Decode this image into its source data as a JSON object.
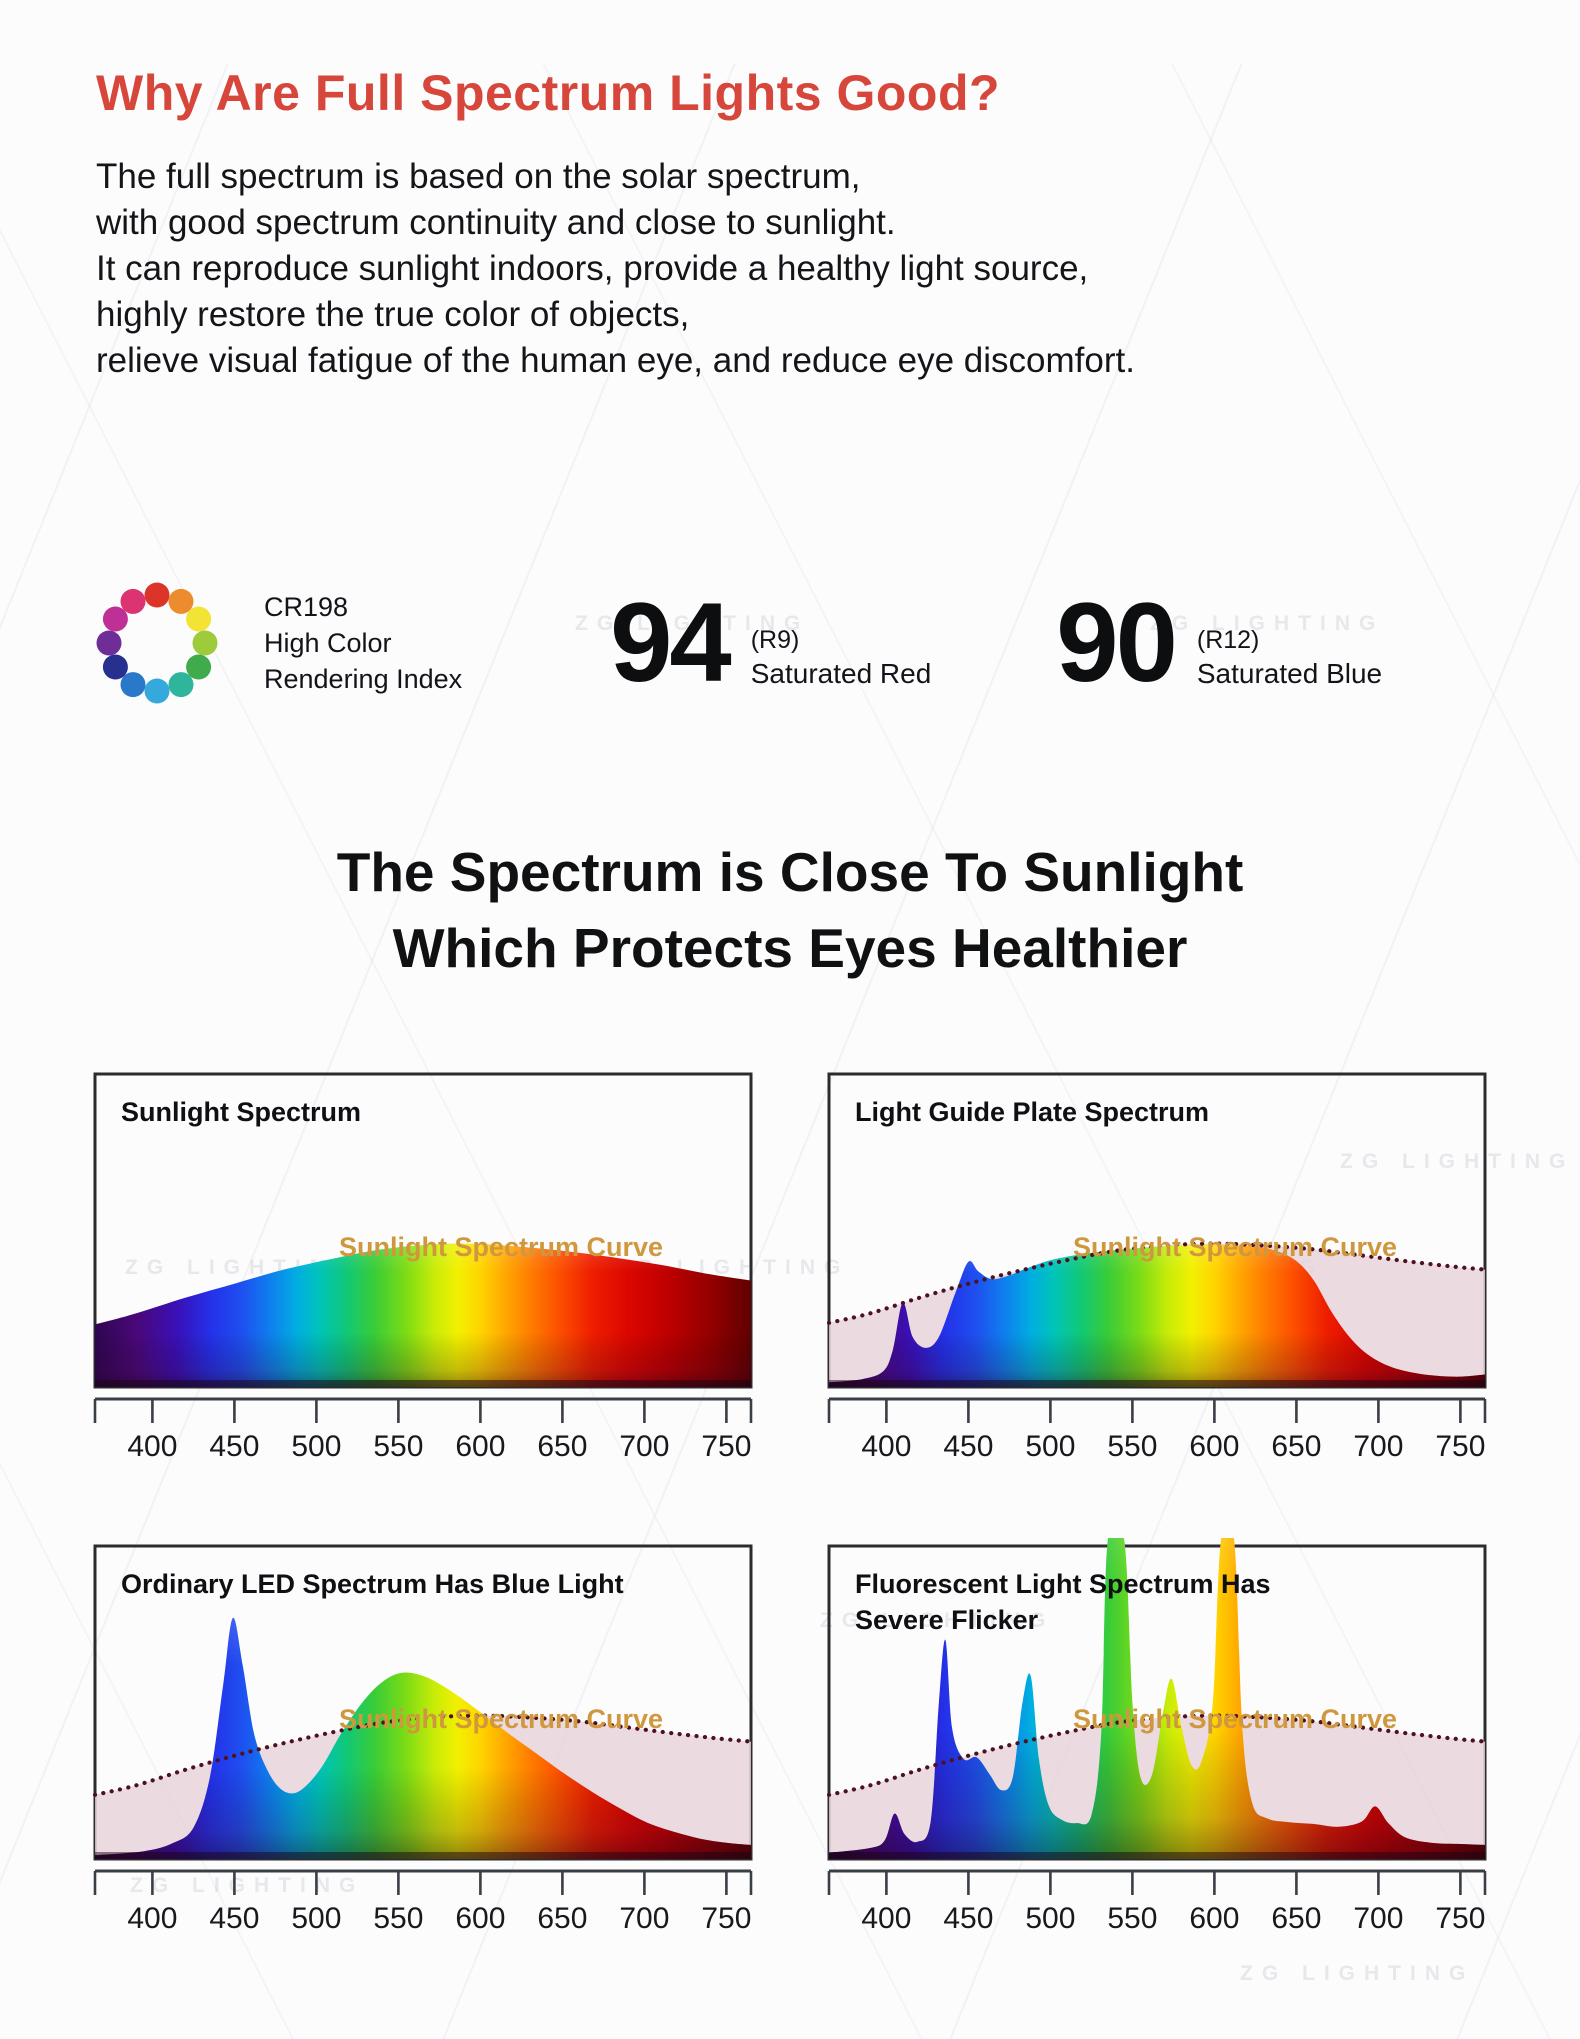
{
  "page": {
    "heading": "Why Are Full Spectrum Lights Good?",
    "paragraph_lines": [
      "The full spectrum is based on the solar spectrum,",
      "with good spectrum continuity and close to sunlight.",
      "It can reproduce sunlight indoors, provide a healthy light source,",
      "highly restore the true color of objects,",
      "relieve visual fatigue of the human eye, and reduce eye discomfort."
    ],
    "subheading_lines": [
      "The Spectrum is Close To Sunlight",
      "Which Protects Eyes Healthier"
    ]
  },
  "cri": {
    "label_line1": "CR198",
    "label_line2": "High Color",
    "label_line3": "Rendering Index",
    "wheel_colors": [
      "#DC3428",
      "#EC8C2F",
      "#F2E335",
      "#9DCB3B",
      "#3FAB4A",
      "#2FB59B",
      "#35A8DC",
      "#2979C8",
      "#27308F",
      "#6E2D97",
      "#BF3096",
      "#DC3372"
    ]
  },
  "stats": [
    {
      "value": "94",
      "index": "(R9)",
      "label": "Saturated Red"
    },
    {
      "value": "90",
      "index": "(R12)",
      "label": "Saturated Blue"
    }
  ],
  "watermark": {
    "text": "ZG LIGHTING"
  },
  "colors": {
    "heading_red": "#D6463B",
    "accent_gold": "#CF983E",
    "dotted_curve": "#4E1120",
    "pink_fill": "#E8D2DB",
    "axis": "#3A3F45",
    "spectrum_gradient": [
      [
        365,
        "#2F0650"
      ],
      [
        390,
        "#4A0878"
      ],
      [
        415,
        "#3A10B8"
      ],
      [
        435,
        "#2430E8"
      ],
      [
        455,
        "#1E50F0"
      ],
      [
        472,
        "#0E80EE"
      ],
      [
        488,
        "#00AEE0"
      ],
      [
        502,
        "#00C4B8"
      ],
      [
        518,
        "#10C878"
      ],
      [
        535,
        "#38CC38"
      ],
      [
        555,
        "#7EDC14"
      ],
      [
        572,
        "#C8EC08"
      ],
      [
        586,
        "#F2F000"
      ],
      [
        600,
        "#FFD400"
      ],
      [
        615,
        "#FFA800"
      ],
      [
        632,
        "#FF7800"
      ],
      [
        650,
        "#FB4A00"
      ],
      [
        668,
        "#EE1E00"
      ],
      [
        690,
        "#DC0600"
      ],
      [
        715,
        "#BC0000"
      ],
      [
        740,
        "#940000"
      ],
      [
        765,
        "#600000"
      ]
    ]
  },
  "chart_data": [
    {
      "type": "area",
      "title": "Sunlight Spectrum",
      "title_lines": [
        "Sunlight Spectrum"
      ],
      "curve_label": "Sunlight Spectrum Curve",
      "xlim": [
        365,
        765
      ],
      "x_ticks": [
        400,
        450,
        500,
        550,
        600,
        650,
        700,
        750
      ],
      "grid": false,
      "series": [
        {
          "name": "Sunlight Spectrum Curve",
          "style": "rainbow-fill",
          "points": [
            [
              365,
              0.2
            ],
            [
              390,
              0.235
            ],
            [
              420,
              0.285
            ],
            [
              450,
              0.33
            ],
            [
              480,
              0.375
            ],
            [
              510,
              0.41
            ],
            [
              540,
              0.44
            ],
            [
              570,
              0.455
            ],
            [
              595,
              0.458
            ],
            [
              620,
              0.45
            ],
            [
              650,
              0.435
            ],
            [
              680,
              0.415
            ],
            [
              710,
              0.39
            ],
            [
              740,
              0.36
            ],
            [
              765,
              0.34
            ]
          ]
        }
      ]
    },
    {
      "type": "area",
      "title": "Light Guide Plate Spectrum",
      "title_lines": [
        "Light Guide Plate Spectrum"
      ],
      "curve_label": "Sunlight Spectrum Curve",
      "xlim": [
        365,
        765
      ],
      "x_ticks": [
        400,
        450,
        500,
        550,
        600,
        650,
        700,
        750
      ],
      "grid": false,
      "series": [
        {
          "name": "Sunlight Spectrum Curve (reference)",
          "style": "dotted-reference",
          "points": [
            [
              365,
              0.205
            ],
            [
              390,
              0.235
            ],
            [
              420,
              0.285
            ],
            [
              450,
              0.33
            ],
            [
              480,
              0.37
            ],
            [
              510,
              0.405
            ],
            [
              540,
              0.435
            ],
            [
              570,
              0.452
            ],
            [
              600,
              0.458
            ],
            [
              630,
              0.452
            ],
            [
              660,
              0.44
            ],
            [
              690,
              0.42
            ],
            [
              720,
              0.4
            ],
            [
              745,
              0.385
            ],
            [
              765,
              0.375
            ]
          ]
        },
        {
          "name": "Light guide plate spectrum",
          "style": "rainbow-fill",
          "points": [
            [
              365,
              0.015
            ],
            [
              385,
              0.025
            ],
            [
              398,
              0.05
            ],
            [
              404,
              0.12
            ],
            [
              410,
              0.27
            ],
            [
              416,
              0.16
            ],
            [
              424,
              0.125
            ],
            [
              432,
              0.16
            ],
            [
              442,
              0.3
            ],
            [
              450,
              0.4
            ],
            [
              456,
              0.37
            ],
            [
              464,
              0.345
            ],
            [
              474,
              0.355
            ],
            [
              486,
              0.38
            ],
            [
              500,
              0.405
            ],
            [
              520,
              0.425
            ],
            [
              545,
              0.44
            ],
            [
              570,
              0.45
            ],
            [
              595,
              0.455
            ],
            [
              615,
              0.452
            ],
            [
              632,
              0.443
            ],
            [
              648,
              0.41
            ],
            [
              660,
              0.345
            ],
            [
              672,
              0.235
            ],
            [
              684,
              0.15
            ],
            [
              696,
              0.095
            ],
            [
              710,
              0.06
            ],
            [
              728,
              0.04
            ],
            [
              748,
              0.033
            ],
            [
              765,
              0.04
            ]
          ]
        }
      ]
    },
    {
      "type": "area",
      "title": "Ordinary LED Spectrum Has Blue Light",
      "title_lines": [
        "Ordinary LED Spectrum Has Blue Light"
      ],
      "curve_label": "Sunlight Spectrum Curve",
      "xlim": [
        365,
        765
      ],
      "x_ticks": [
        400,
        450,
        500,
        550,
        600,
        650,
        700,
        750
      ],
      "grid": false,
      "series": [
        {
          "name": "Sunlight Spectrum Curve (reference)",
          "style": "dotted-reference",
          "points": [
            [
              365,
              0.205
            ],
            [
              390,
              0.235
            ],
            [
              420,
              0.285
            ],
            [
              450,
              0.33
            ],
            [
              480,
              0.37
            ],
            [
              510,
              0.405
            ],
            [
              540,
              0.435
            ],
            [
              570,
              0.452
            ],
            [
              600,
              0.458
            ],
            [
              630,
              0.452
            ],
            [
              660,
              0.44
            ],
            [
              690,
              0.42
            ],
            [
              720,
              0.4
            ],
            [
              745,
              0.385
            ],
            [
              765,
              0.375
            ]
          ]
        },
        {
          "name": "Ordinary LED spectrum",
          "style": "rainbow-fill",
          "points": [
            [
              365,
              0.012
            ],
            [
              395,
              0.025
            ],
            [
              412,
              0.05
            ],
            [
              425,
              0.1
            ],
            [
              435,
              0.26
            ],
            [
              443,
              0.55
            ],
            [
              449,
              0.77
            ],
            [
              455,
              0.62
            ],
            [
              462,
              0.4
            ],
            [
              470,
              0.285
            ],
            [
              478,
              0.225
            ],
            [
              486,
              0.21
            ],
            [
              494,
              0.235
            ],
            [
              504,
              0.3
            ],
            [
              515,
              0.4
            ],
            [
              528,
              0.5
            ],
            [
              540,
              0.565
            ],
            [
              552,
              0.595
            ],
            [
              565,
              0.585
            ],
            [
              578,
              0.55
            ],
            [
              592,
              0.5
            ],
            [
              606,
              0.445
            ],
            [
              620,
              0.39
            ],
            [
              636,
              0.33
            ],
            [
              652,
              0.27
            ],
            [
              668,
              0.215
            ],
            [
              684,
              0.165
            ],
            [
              700,
              0.12
            ],
            [
              716,
              0.09
            ],
            [
              734,
              0.065
            ],
            [
              750,
              0.052
            ],
            [
              765,
              0.045
            ]
          ]
        }
      ]
    },
    {
      "type": "area",
      "title": "Fluorescent Light Spectrum Has Severe Flicker",
      "title_lines": [
        "Fluorescent Light Spectrum Has",
        "Severe Flicker"
      ],
      "curve_label": "Sunlight Spectrum Curve",
      "xlim": [
        365,
        765
      ],
      "x_ticks": [
        400,
        450,
        500,
        550,
        600,
        650,
        700,
        750
      ],
      "grid": false,
      "series": [
        {
          "name": "Sunlight Spectrum Curve (reference)",
          "style": "dotted-reference",
          "points": [
            [
              365,
              0.205
            ],
            [
              390,
              0.235
            ],
            [
              420,
              0.285
            ],
            [
              450,
              0.33
            ],
            [
              480,
              0.37
            ],
            [
              510,
              0.405
            ],
            [
              540,
              0.435
            ],
            [
              570,
              0.452
            ],
            [
              600,
              0.458
            ],
            [
              630,
              0.452
            ],
            [
              660,
              0.44
            ],
            [
              690,
              0.42
            ],
            [
              720,
              0.4
            ],
            [
              745,
              0.385
            ],
            [
              765,
              0.375
            ]
          ]
        },
        {
          "name": "Fluorescent light spectrum",
          "style": "rainbow-fill",
          "points": [
            [
              365,
              0.02
            ],
            [
              390,
              0.035
            ],
            [
              399,
              0.06
            ],
            [
              405,
              0.145
            ],
            [
              411,
              0.08
            ],
            [
              419,
              0.055
            ],
            [
              427,
              0.12
            ],
            [
              432,
              0.5
            ],
            [
              436,
              0.7
            ],
            [
              440,
              0.42
            ],
            [
              447,
              0.32
            ],
            [
              455,
              0.325
            ],
            [
              463,
              0.27
            ],
            [
              470,
              0.22
            ],
            [
              477,
              0.26
            ],
            [
              483,
              0.5
            ],
            [
              488,
              0.585
            ],
            [
              493,
              0.32
            ],
            [
              499,
              0.17
            ],
            [
              507,
              0.125
            ],
            [
              516,
              0.115
            ],
            [
              525,
              0.14
            ],
            [
              531,
              0.4
            ],
            [
              535,
              1.02
            ],
            [
              545,
              1.02
            ],
            [
              550,
              0.5
            ],
            [
              555,
              0.26
            ],
            [
              562,
              0.27
            ],
            [
              569,
              0.48
            ],
            [
              574,
              0.575
            ],
            [
              580,
              0.42
            ],
            [
              586,
              0.3
            ],
            [
              592,
              0.31
            ],
            [
              599,
              0.5
            ],
            [
              604,
              1.02
            ],
            [
              612,
              1.02
            ],
            [
              617,
              0.42
            ],
            [
              623,
              0.18
            ],
            [
              632,
              0.13
            ],
            [
              645,
              0.118
            ],
            [
              660,
              0.112
            ],
            [
              676,
              0.103
            ],
            [
              690,
              0.12
            ],
            [
              698,
              0.168
            ],
            [
              706,
              0.115
            ],
            [
              716,
              0.07
            ],
            [
              732,
              0.052
            ],
            [
              750,
              0.048
            ],
            [
              765,
              0.045
            ]
          ]
        }
      ]
    }
  ]
}
